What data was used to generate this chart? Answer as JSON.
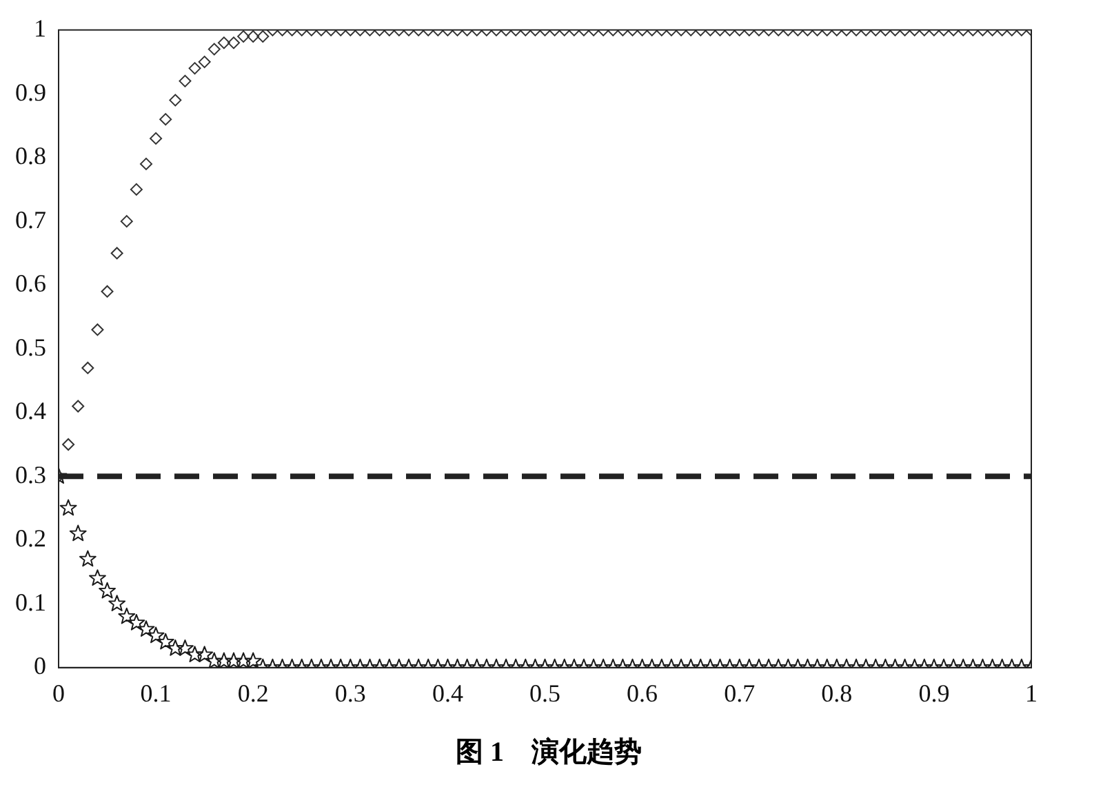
{
  "chart_data": {
    "type": "scatter",
    "annotations": [
      "图 1　演化趋势"
    ],
    "x": [
      0,
      0.01,
      0.02,
      0.03,
      0.04,
      0.05,
      0.06,
      0.07,
      0.08,
      0.09,
      0.1,
      0.11,
      0.12,
      0.13,
      0.14,
      0.15,
      0.16,
      0.17,
      0.18,
      0.19,
      0.2,
      0.21,
      0.22,
      0.23,
      0.24,
      0.25,
      0.26,
      0.27,
      0.28,
      0.29,
      0.3,
      0.31,
      0.32,
      0.33,
      0.34,
      0.35,
      0.36,
      0.37,
      0.38,
      0.39,
      0.4,
      0.41,
      0.42,
      0.43,
      0.44,
      0.45,
      0.46,
      0.47,
      0.48,
      0.49,
      0.5,
      0.51,
      0.52,
      0.53,
      0.54,
      0.55,
      0.56,
      0.57,
      0.58,
      0.59,
      0.6,
      0.61,
      0.62,
      0.63,
      0.64,
      0.65,
      0.66,
      0.67,
      0.68,
      0.69,
      0.7,
      0.71,
      0.72,
      0.73,
      0.74,
      0.75,
      0.76,
      0.77,
      0.78,
      0.79,
      0.8,
      0.81,
      0.82,
      0.83,
      0.84,
      0.85,
      0.86,
      0.87,
      0.88,
      0.89,
      0.9,
      0.91,
      0.92,
      0.93,
      0.94,
      0.95,
      0.96,
      0.97,
      0.98,
      0.99,
      1
    ],
    "series": [
      {
        "color": "#333333",
        "marker": "diamond",
        "values": [
          0.3,
          0.35,
          0.41,
          0.47,
          0.53,
          0.59,
          0.65,
          0.7,
          0.75,
          0.79,
          0.83,
          0.86,
          0.89,
          0.92,
          0.94,
          0.95,
          0.97,
          0.98,
          0.98,
          0.99,
          0.99,
          0.99,
          1,
          1,
          1,
          1,
          1,
          1,
          1,
          1,
          1,
          1,
          1,
          1,
          1,
          1,
          1,
          1,
          1,
          1,
          1,
          1,
          1,
          1,
          1,
          1,
          1,
          1,
          1,
          1,
          1,
          1,
          1,
          1,
          1,
          1,
          1,
          1,
          1,
          1,
          1,
          1,
          1,
          1,
          1,
          1,
          1,
          1,
          1,
          1,
          1,
          1,
          1,
          1,
          1,
          1,
          1,
          1,
          1,
          1,
          1,
          1,
          1,
          1,
          1,
          1,
          1,
          1,
          1,
          1,
          1,
          1,
          1,
          1,
          1,
          1,
          1,
          1,
          1,
          1,
          1
        ]
      },
      {
        "color": "#1a1a1a",
        "marker": "star",
        "values": [
          0.3,
          0.25,
          0.21,
          0.17,
          0.14,
          0.12,
          0.1,
          0.08,
          0.07,
          0.06,
          0.05,
          0.04,
          0.03,
          0.03,
          0.02,
          0.02,
          0.01,
          0.01,
          0.01,
          0.01,
          0.01,
          0,
          0,
          0,
          0,
          0,
          0,
          0,
          0,
          0,
          0,
          0,
          0,
          0,
          0,
          0,
          0,
          0,
          0,
          0,
          0,
          0,
          0,
          0,
          0,
          0,
          0,
          0,
          0,
          0,
          0,
          0,
          0,
          0,
          0,
          0,
          0,
          0,
          0,
          0,
          0,
          0,
          0,
          0,
          0,
          0,
          0,
          0,
          0,
          0,
          0,
          0,
          0,
          0,
          0,
          0,
          0,
          0,
          0,
          0,
          0,
          0,
          0,
          0,
          0,
          0,
          0,
          0,
          0,
          0,
          0,
          0,
          0,
          0,
          0,
          0,
          0,
          0,
          0,
          0,
          0
        ]
      }
    ],
    "ref_lines": [
      {
        "axis": "y",
        "value": 0.3,
        "color": "#222222",
        "line_style": "dashed"
      }
    ],
    "xlim": [
      0,
      1
    ],
    "ylim": [
      0,
      1
    ],
    "xticks": [
      0,
      0.1,
      0.2,
      0.3,
      0.4,
      0.5,
      0.6,
      0.7,
      0.8,
      0.9,
      1
    ],
    "yticks": [
      0,
      0.1,
      0.2,
      0.3,
      0.4,
      0.5,
      0.6,
      0.7,
      0.8,
      0.9,
      1
    ],
    "grid": false,
    "legend": false
  }
}
